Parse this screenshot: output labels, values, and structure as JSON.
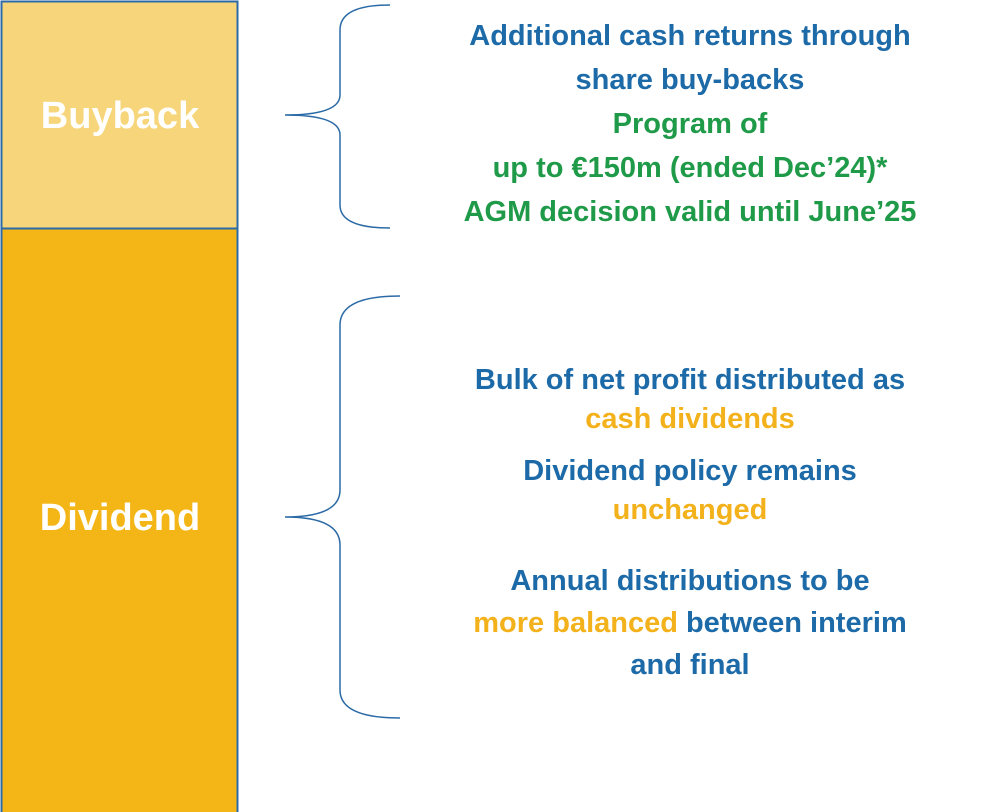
{
  "boxes": {
    "buyback": "Buyback",
    "dividend": "Dividend"
  },
  "buyback_text": [
    "Additional cash returns through",
    "share buy-backs",
    "Program of",
    "up to €150m (ended Dec’24)*",
    "AGM decision valid until June’25"
  ],
  "dividend_text": {
    "p1": [
      "Bulk of net profit distributed as",
      "cash dividends"
    ],
    "p2": [
      "Dividend policy remains",
      "unchanged"
    ],
    "p3": [
      "Annual distributions to be",
      "more balanced",
      "between interim",
      "and final"
    ]
  }
}
